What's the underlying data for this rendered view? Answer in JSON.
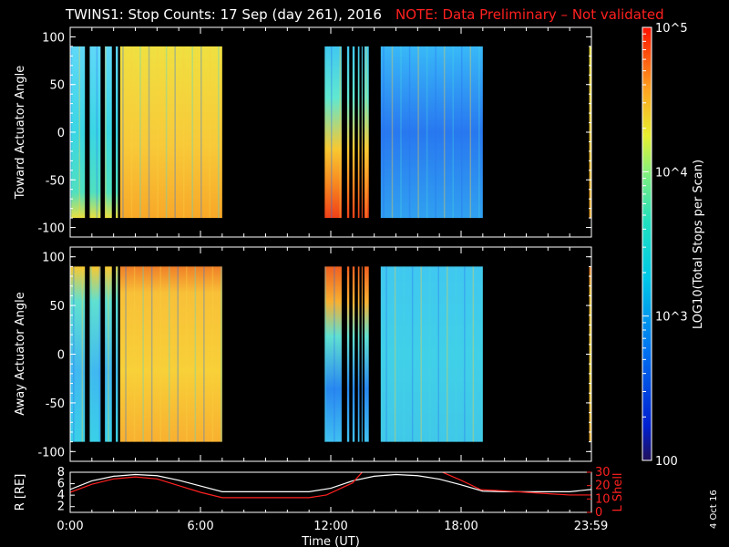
{
  "title": "TWINS1: Stop Counts: 17 Sep (day 261), 2016",
  "note": "NOTE: Data Preliminary – Not validated",
  "colors": {
    "background": "#000000",
    "note": "#ff2020",
    "axes": "#ffffff",
    "orbit_r": "#ffffff",
    "orbit_l": "#ff2020"
  },
  "date_stamp": "4 Oct 16",
  "chart_data": [
    {
      "type": "heatmap",
      "panel": "top",
      "ylabel": "Toward Actuator Angle",
      "ylim": [
        -110,
        110
      ],
      "yticks": [
        -100,
        -50,
        0,
        50,
        100
      ],
      "data_ylim": [
        -90,
        90
      ],
      "xlim": [
        0,
        24
      ],
      "data_gaps": [
        [
          0.68,
          0.9
        ],
        [
          1.4,
          1.6
        ],
        [
          1.92,
          2.1
        ],
        [
          2.2,
          2.3
        ],
        [
          7.0,
          11.72
        ],
        [
          12.5,
          12.75
        ],
        [
          12.85,
          13.0
        ],
        [
          13.1,
          13.25
        ],
        [
          13.32,
          13.42
        ],
        [
          13.45,
          13.55
        ],
        [
          13.75,
          14.3
        ],
        [
          19.0,
          23.9
        ]
      ],
      "colorbar": {
        "scale": "log",
        "range": [
          100,
          100000
        ]
      }
    },
    {
      "type": "heatmap",
      "panel": "middle",
      "ylabel": "Away Actuator Angle",
      "ylim": [
        -110,
        110
      ],
      "yticks": [
        -100,
        -50,
        0,
        50,
        100
      ],
      "data_ylim": [
        -90,
        90
      ],
      "xlim": [
        0,
        24
      ],
      "data_gaps": [
        [
          0.68,
          0.9
        ],
        [
          1.4,
          1.6
        ],
        [
          1.92,
          2.1
        ],
        [
          2.2,
          2.3
        ],
        [
          7.0,
          11.72
        ],
        [
          12.5,
          12.75
        ],
        [
          12.85,
          13.0
        ],
        [
          13.1,
          13.25
        ],
        [
          13.32,
          13.42
        ],
        [
          13.45,
          13.55
        ],
        [
          13.75,
          14.3
        ],
        [
          19.0,
          23.9
        ]
      ],
      "colorbar": {
        "scale": "log",
        "range": [
          100,
          100000
        ]
      }
    },
    {
      "type": "line",
      "panel": "bottom",
      "xlabel": "Time (UT)",
      "xticks": [
        {
          "t": 0,
          "label": "0:00"
        },
        {
          "t": 6,
          "label": "6:00"
        },
        {
          "t": 12,
          "label": "12:00"
        },
        {
          "t": 18,
          "label": "18:00"
        },
        {
          "t": 23.98,
          "label": "23:59"
        }
      ],
      "xlim": [
        0,
        24
      ],
      "left_axis": {
        "label": "R [RE]",
        "ylim": [
          1,
          8
        ],
        "ticks": [
          2,
          4,
          6,
          8
        ]
      },
      "right_axis": {
        "label": "L Shell",
        "ylim": [
          0,
          30
        ],
        "ticks": [
          0,
          10,
          20,
          30
        ]
      },
      "series": [
        {
          "axis": "left",
          "x": [
            0,
            1,
            2,
            3,
            4,
            5,
            6,
            7,
            8,
            9,
            10,
            11,
            12,
            13,
            14,
            15,
            16,
            17,
            18,
            19,
            20,
            21,
            22,
            23,
            24
          ],
          "y": [
            5.0,
            6.5,
            7.3,
            7.6,
            7.4,
            6.6,
            5.6,
            4.6,
            4.6,
            4.6,
            4.6,
            4.6,
            5.2,
            6.5,
            7.3,
            7.6,
            7.4,
            6.8,
            5.8,
            4.7,
            4.6,
            4.6,
            4.6,
            4.6,
            5.0
          ]
        },
        {
          "axis": "right",
          "x": [
            0,
            1,
            2,
            3,
            4,
            5,
            6,
            7,
            8,
            9,
            10,
            11,
            11.8,
            13,
            13.5,
            17,
            18,
            18.9,
            20,
            21,
            22,
            23,
            24
          ],
          "y": [
            15,
            21,
            25,
            26.5,
            25,
            20,
            15,
            11,
            11,
            11,
            11,
            11,
            13,
            22,
            31,
            31,
            24,
            17,
            16,
            15,
            14,
            13,
            13
          ]
        }
      ]
    },
    {
      "type": "colorbar",
      "label": "LOG10(Total Stops per Scan)",
      "scale": "log",
      "range": [
        100,
        100000
      ],
      "tick_labels": [
        "10^5",
        "10^4",
        "10^3",
        "100"
      ]
    }
  ]
}
